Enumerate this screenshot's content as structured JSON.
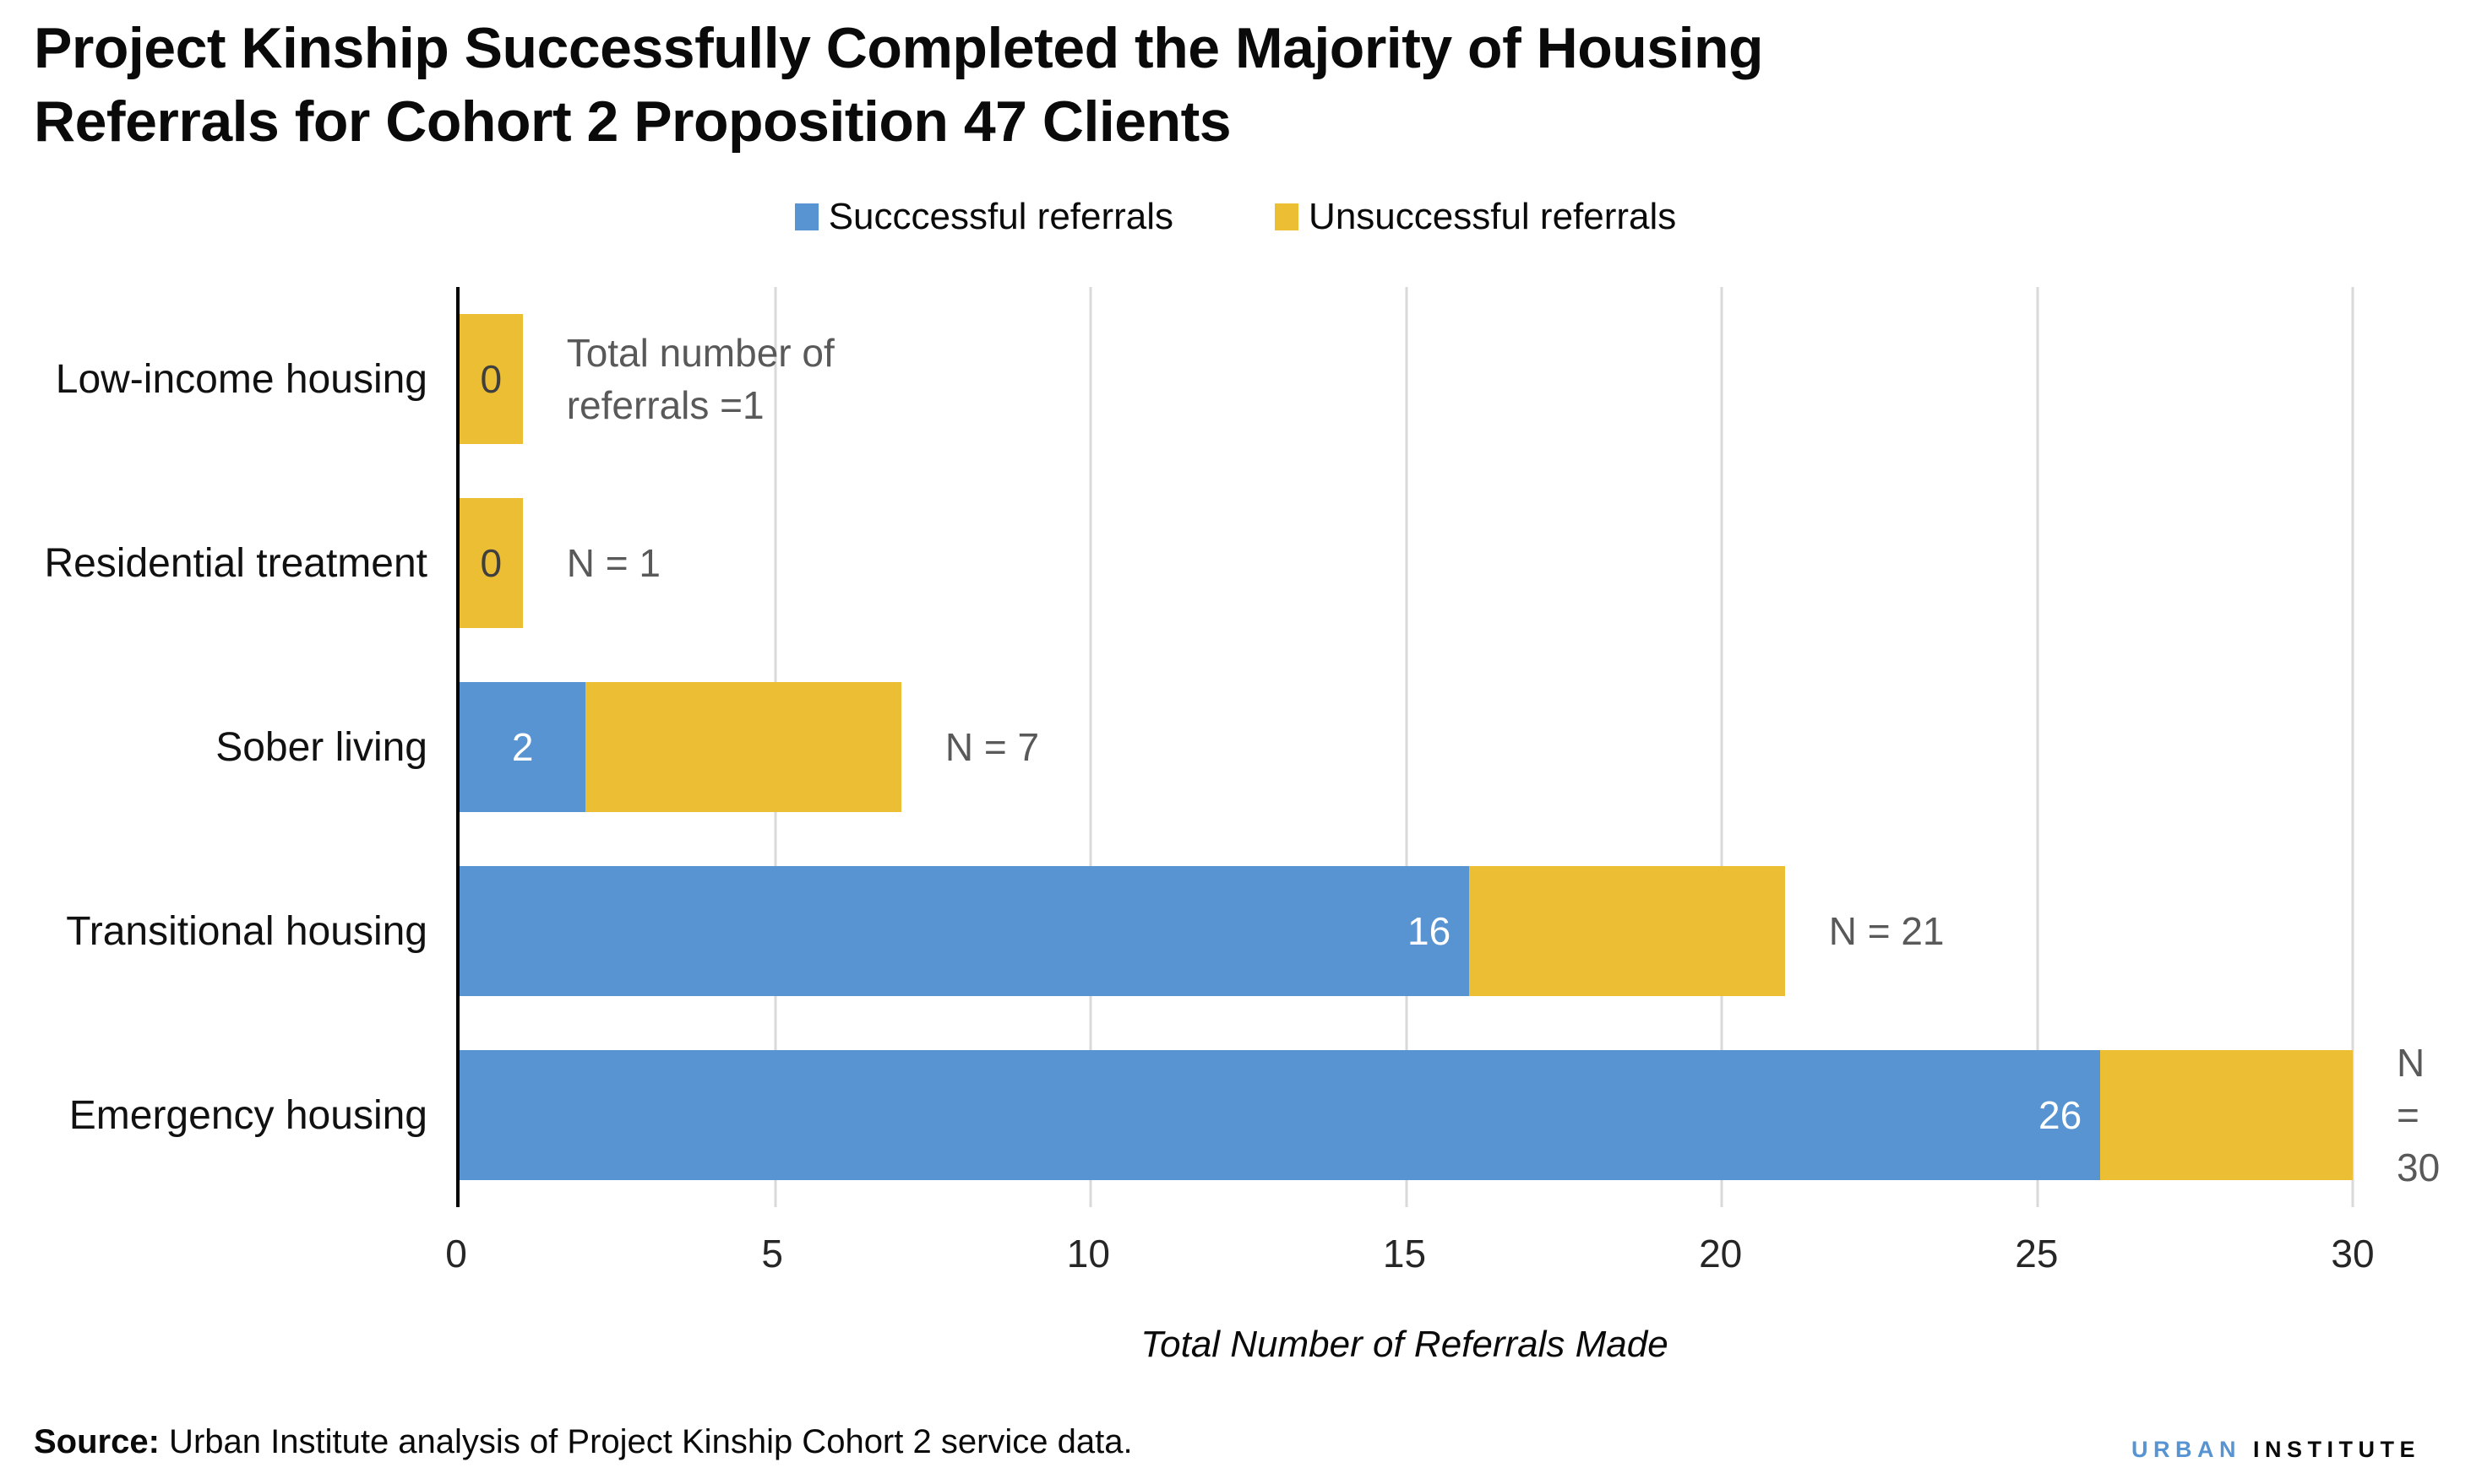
{
  "title": "Project Kinship Successfully Completed the Majority of Housing Referrals for Cohort 2 Proposition 47 Clients",
  "legend": [
    {
      "label": "Succcessful referrals",
      "color": "#5894D1"
    },
    {
      "label": "Unsuccessful referrals",
      "color": "#ECBE33"
    }
  ],
  "chart_data": {
    "type": "bar",
    "orientation": "horizontal",
    "stacked": true,
    "categories": [
      "Low-income housing",
      "Residential treatment",
      "Sober living",
      "Transitional housing",
      "Emergency housing"
    ],
    "series": [
      {
        "name": "Succcessful referrals",
        "color": "#5894D1",
        "values": [
          0,
          0,
          2,
          16,
          26
        ]
      },
      {
        "name": "Unsuccessful referrals",
        "color": "#ECBE33",
        "values": [
          1,
          1,
          5,
          5,
          4
        ]
      }
    ],
    "totals": [
      1,
      1,
      7,
      21,
      30
    ],
    "bar_labels": [
      "0",
      "0",
      "2",
      "16",
      "26"
    ],
    "annotations": [
      "Total number of\nreferrals =1",
      "N = 1",
      "N = 7",
      "N = 21",
      "N = 30"
    ],
    "x_ticks": [
      0,
      5,
      10,
      15,
      20,
      25,
      30
    ],
    "xlim": [
      0,
      30
    ],
    "xlabel": "Total Number of Referrals Made",
    "grid": true,
    "legend_position": "top-center",
    "colors": {
      "gridline": "#d9d9d9",
      "axis": "#000000",
      "annotation_text": "#595959",
      "label_on_blue": "#ffffff",
      "label_on_yellow": "#3f3f3f"
    }
  },
  "footer": {
    "source_label": "Source:",
    "source_text": " Urban Institute analysis of Project Kinship Cohort 2 service data.",
    "logo": {
      "part1": "URBAN",
      "part2": "INSTITUTE",
      "part1_color": "#5894D1",
      "part2_color": "#0a0a0a"
    }
  }
}
